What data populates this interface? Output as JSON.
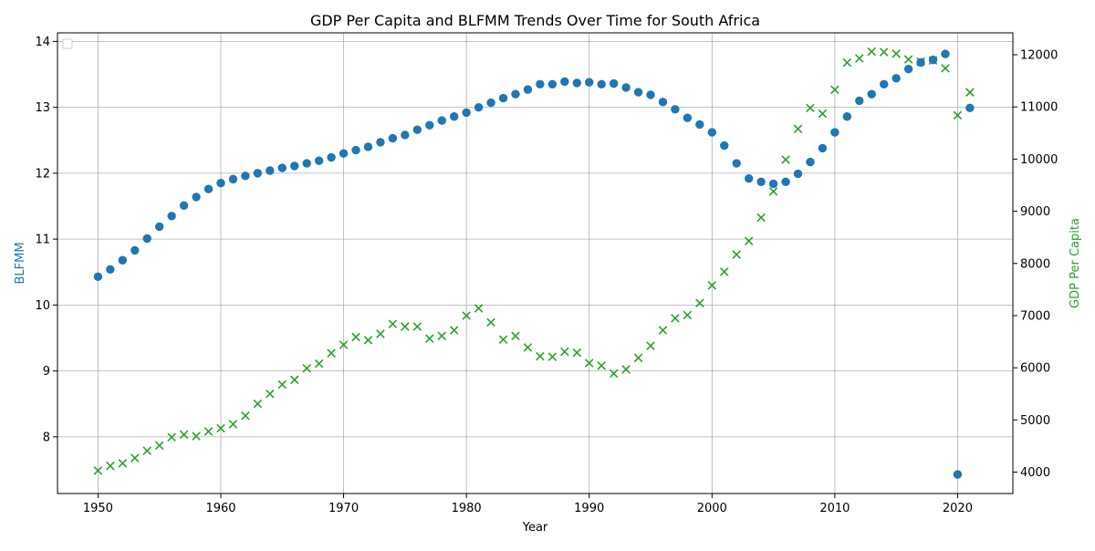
{
  "chart_data": {
    "type": "scatter",
    "title": "GDP Per Capita and BLFMM Trends Over Time for South Africa",
    "xlabel": "Year",
    "ylabel_left": "BLFMM",
    "ylabel_right": "GDP Per Capita",
    "xlim": [
      1946.7,
      2024.5
    ],
    "ylim_left": [
      7.14,
      14.13
    ],
    "ylim_right": [
      3590,
      12420
    ],
    "x_ticks": [
      1950,
      1960,
      1970,
      1980,
      1990,
      2000,
      2010,
      2020
    ],
    "y_ticks_left": [
      8,
      9,
      10,
      11,
      12,
      13,
      14
    ],
    "y_ticks_right": [
      4000,
      5000,
      6000,
      7000,
      8000,
      9000,
      10000,
      11000,
      12000
    ],
    "grid": true,
    "legend": "top-left, empty",
    "colors": {
      "blfmm": "#1f77b4",
      "gdp": "#2ca02c",
      "grid": "#b0b0b0",
      "axis": "#000000"
    },
    "series": [
      {
        "name": "BLFMM",
        "axis": "left",
        "marker": "circle",
        "x": [
          1950,
          1951,
          1952,
          1953,
          1954,
          1955,
          1956,
          1957,
          1958,
          1959,
          1960,
          1961,
          1962,
          1963,
          1964,
          1965,
          1966,
          1967,
          1968,
          1969,
          1970,
          1971,
          1972,
          1973,
          1974,
          1975,
          1976,
          1977,
          1978,
          1979,
          1980,
          1981,
          1982,
          1983,
          1984,
          1985,
          1986,
          1987,
          1988,
          1989,
          1990,
          1991,
          1992,
          1993,
          1994,
          1995,
          1996,
          1997,
          1998,
          1999,
          2000,
          2001,
          2002,
          2003,
          2004,
          2005,
          2006,
          2007,
          2008,
          2009,
          2010,
          2011,
          2012,
          2013,
          2014,
          2015,
          2016,
          2017,
          2018,
          2019,
          2020,
          2021
        ],
        "y": [
          10.43,
          10.54,
          10.68,
          10.83,
          11.01,
          11.19,
          11.35,
          11.51,
          11.64,
          11.76,
          11.85,
          11.91,
          11.96,
          12.0,
          12.04,
          12.08,
          12.11,
          12.15,
          12.19,
          12.24,
          12.3,
          12.35,
          12.4,
          12.47,
          12.53,
          12.58,
          12.66,
          12.73,
          12.8,
          12.86,
          12.92,
          13.0,
          13.07,
          13.14,
          13.2,
          13.27,
          13.35,
          13.35,
          13.39,
          13.37,
          13.38,
          13.35,
          13.36,
          13.3,
          13.23,
          13.19,
          13.08,
          12.97,
          12.84,
          12.74,
          12.62,
          12.42,
          12.15,
          11.92,
          11.87,
          11.84,
          11.87,
          11.99,
          12.17,
          12.38,
          12.62,
          12.86,
          13.1,
          13.2,
          13.35,
          13.44,
          13.58,
          13.68,
          13.72,
          13.81,
          7.43,
          12.99
        ]
      },
      {
        "name": "GDP Per Capita",
        "axis": "right",
        "marker": "x",
        "x": [
          1950,
          1951,
          1952,
          1953,
          1954,
          1955,
          1956,
          1957,
          1958,
          1959,
          1960,
          1961,
          1962,
          1963,
          1964,
          1965,
          1966,
          1967,
          1968,
          1969,
          1970,
          1971,
          1972,
          1973,
          1974,
          1975,
          1976,
          1977,
          1978,
          1979,
          1980,
          1981,
          1982,
          1983,
          1984,
          1985,
          1986,
          1987,
          1988,
          1989,
          1990,
          1991,
          1992,
          1993,
          1994,
          1995,
          1996,
          1997,
          1998,
          1999,
          2000,
          2001,
          2002,
          2003,
          2004,
          2005,
          2006,
          2007,
          2008,
          2009,
          2010,
          2011,
          2012,
          2013,
          2014,
          2015,
          2016,
          2017,
          2018,
          2019,
          2020,
          2021
        ],
        "y": [
          4030,
          4120,
          4170,
          4270,
          4410,
          4510,
          4670,
          4720,
          4690,
          4780,
          4840,
          4920,
          5080,
          5310,
          5500,
          5680,
          5770,
          5990,
          6080,
          6280,
          6440,
          6590,
          6530,
          6650,
          6840,
          6790,
          6790,
          6560,
          6610,
          6720,
          7000,
          7140,
          6870,
          6540,
          6610,
          6390,
          6220,
          6210,
          6310,
          6290,
          6090,
          6040,
          5890,
          5970,
          6190,
          6420,
          6720,
          6950,
          7010,
          7240,
          7580,
          7840,
          8170,
          8430,
          8880,
          9380,
          9990,
          10580,
          10980,
          10870,
          11330,
          11850,
          11930,
          12060,
          12050,
          12020,
          11910,
          11870,
          11890,
          11740,
          10840,
          11280
        ]
      }
    ]
  }
}
